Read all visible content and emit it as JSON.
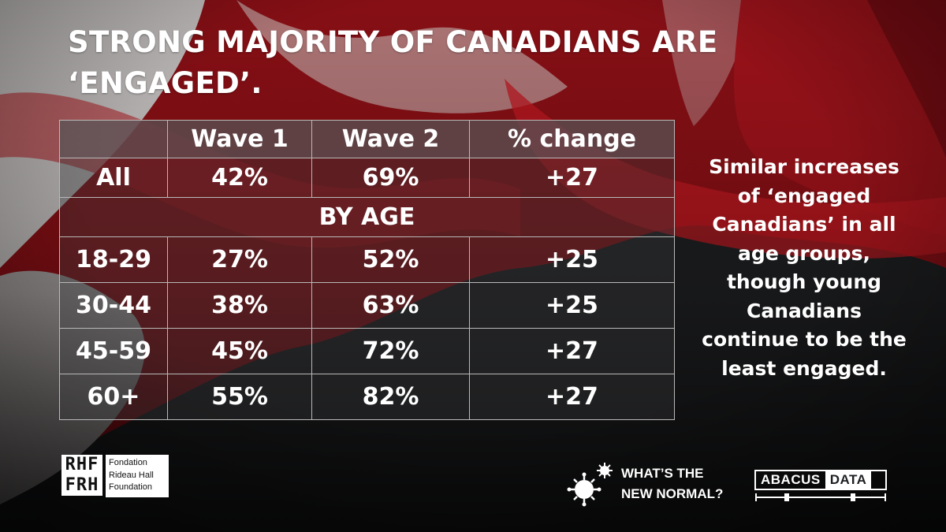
{
  "title": "STRONG MAJORITY OF CANADIANS ARE ‘ENGAGED’.",
  "table": {
    "headers": [
      "",
      "Wave 1",
      "Wave 2",
      "% change"
    ],
    "all_row": [
      "All",
      "42%",
      "69%",
      "+27"
    ],
    "section_label": "BY AGE",
    "age_rows": [
      [
        "18-29",
        "27%",
        "52%",
        "+25"
      ],
      [
        "30-44",
        "38%",
        "63%",
        "+25"
      ],
      [
        "45-59",
        "45%",
        "72%",
        "+27"
      ],
      [
        "60+",
        "55%",
        "82%",
        "+27"
      ]
    ]
  },
  "note": "Similar increases of ‘engaged Canadians’ in all age groups, though young Canadians continue to be the least engaged.",
  "logos": {
    "rhf_mark": "RHF\nFRH",
    "rhf_text": "Fondation Rideau Hall Foundation",
    "rhf_text_lines": [
      "Fondation",
      "Rideau Hall",
      "Foundation"
    ],
    "wtnn_line1": "WHAT’S THE",
    "wtnn_line2": "NEW NORMAL?",
    "abacus_part1": "ABACUS",
    "abacus_part2": "DATA"
  },
  "colors": {
    "change_positive": "#b6e36a",
    "flag_red": "#b3121b",
    "background": "#1e1f22"
  },
  "chart_data": {
    "type": "table",
    "title": "STRONG MAJORITY OF CANADIANS ARE ‘ENGAGED’.",
    "columns": [
      "Wave 1",
      "Wave 2",
      "% change"
    ],
    "rows": [
      {
        "group": "All",
        "wave1": 42,
        "wave2": 69,
        "change": 27
      },
      {
        "group": "18-29",
        "wave1": 27,
        "wave2": 52,
        "change": 25
      },
      {
        "group": "30-44",
        "wave1": 38,
        "wave2": 63,
        "change": 25
      },
      {
        "group": "45-59",
        "wave1": 45,
        "wave2": 72,
        "change": 27
      },
      {
        "group": "60+",
        "wave1": 55,
        "wave2": 82,
        "change": 27
      }
    ],
    "section": "BY AGE"
  }
}
